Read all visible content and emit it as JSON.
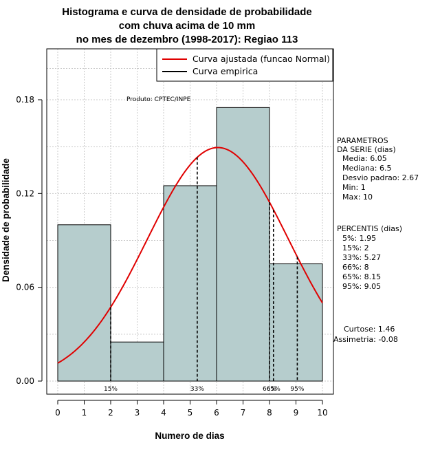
{
  "chart_data": {
    "type": "bar",
    "title_lines": [
      "Histograma e curva de densidade de probabilidade",
      "com chuva acima de 10 mm",
      "no mes de dezembro (1998-2017): Regiao 113"
    ],
    "xlabel": "Numero de dias",
    "ylabel": "Densidade de probabilidade",
    "xlim": [
      -0.4,
      10.4
    ],
    "ylim": [
      0,
      0.21
    ],
    "x_ticks": [
      0,
      1,
      2,
      3,
      4,
      5,
      6,
      7,
      8,
      9,
      10
    ],
    "x_tick_labels": [
      "0",
      "1",
      "2",
      "3",
      "4",
      "5",
      "6",
      "7",
      "8",
      "9",
      "10"
    ],
    "y_ticks": [
      0.0,
      0.06,
      0.12,
      0.18
    ],
    "y_tick_labels": [
      "0.00",
      "0.06",
      "0.12",
      "0.18"
    ],
    "bins": [
      {
        "start": 0,
        "end": 2,
        "density": 0.1
      },
      {
        "start": 2,
        "end": 4,
        "density": 0.025
      },
      {
        "start": 4,
        "end": 6,
        "density": 0.125
      },
      {
        "start": 6,
        "end": 8,
        "density": 0.175
      },
      {
        "start": 8,
        "end": 10,
        "density": 0.075
      }
    ],
    "normal_curve": {
      "mean": 6.05,
      "sd": 2.67,
      "x_from": 0,
      "x_to": 10
    },
    "percentile_lines": [
      {
        "x": 2,
        "label": "15%"
      },
      {
        "x": 5.27,
        "label": "33%"
      },
      {
        "x": 8,
        "label": "66%"
      },
      {
        "x": 8.15,
        "label": "65%"
      },
      {
        "x": 9.05,
        "label": "95%"
      }
    ],
    "grid": true,
    "bar_color": "#b6cdcd",
    "curve_color": "#e00000",
    "legend": {
      "position": "top-right",
      "entries": [
        {
          "label": "Curva ajustada (funcao Normal)",
          "color": "#e00000"
        },
        {
          "label": "Curva empirica",
          "color": "#000000"
        }
      ]
    },
    "annotation": "Produto: CPTEC/INPE",
    "side_text": {
      "parametros": [
        "PARAMETROS",
        "DA SERIE (dias)",
        "Media: 6.05",
        "Mediana: 6.5",
        "Desvio padrao: 2.67",
        "Min: 1",
        "Max: 10"
      ],
      "percentis": [
        "PERCENTIS (dias)",
        "5%: 1.95",
        "15%: 2",
        "33%: 5.27",
        "66%: 8",
        "65%: 8.15",
        "95%: 9.05"
      ],
      "shape": [
        "Curtose: 1.46",
        "Assimetria: -0.08"
      ]
    }
  }
}
